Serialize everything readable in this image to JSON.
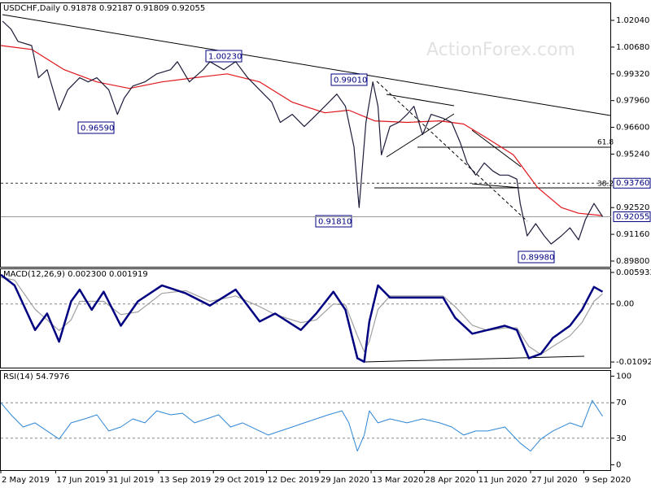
{
  "watermark": "ActionForex.com",
  "chart_data": [
    {
      "type": "line",
      "title": "USDCHF,Daily  0.91878 0.92187 0.91809 0.92055",
      "xlim": [
        0,
        356
      ],
      "ylim": [
        0.8951,
        1.0291
      ],
      "yticks": [
        {
          "value": 1.0204,
          "label": "1.02040"
        },
        {
          "value": 1.0068,
          "label": "1.00680"
        },
        {
          "value": 0.9932,
          "label": "0.99320"
        },
        {
          "value": 0.9796,
          "label": "0.97960"
        },
        {
          "value": 0.966,
          "label": "0.96600"
        },
        {
          "value": 0.9524,
          "label": "0.95240"
        },
        {
          "value": 0.9252,
          "label": "0.92520"
        },
        {
          "value": 0.9116,
          "label": "0.91160"
        },
        {
          "value": 0.898,
          "label": "0.89800"
        }
      ],
      "markers": [
        {
          "value": 0.9376,
          "label": "0.93760"
        },
        {
          "value": 0.92055,
          "label": "0.92055"
        }
      ],
      "annotations": [
        "1.00230",
        "0.99010",
        "0.96590",
        "0.91810",
        "0.89980",
        "61.8",
        "38.2"
      ],
      "series": [
        {
          "color": "#1c1c3a",
          "x": [
            1,
            6,
            10,
            18,
            22,
            27,
            34,
            39,
            46,
            51,
            56,
            63,
            68,
            72,
            77,
            84,
            91,
            99,
            103,
            110,
            118,
            122,
            130,
            137,
            144,
            151,
            158,
            163,
            170,
            177,
            182,
            189,
            196,
            201,
            206,
            209,
            213,
            217,
            220,
            222,
            227,
            232,
            237,
            241,
            246,
            251,
            258,
            263,
            268,
            272,
            277,
            282,
            287,
            291,
            296,
            301,
            303,
            307,
            312,
            317,
            321,
            327,
            332,
            337,
            341,
            346,
            351
          ],
          "values": [
            1.02,
            1.0159,
            1.0097,
            1.0076,
            0.9912,
            0.9953,
            0.9747,
            0.985,
            0.9912,
            0.9891,
            0.9912,
            0.985,
            0.9726,
            0.9809,
            0.987,
            0.9891,
            0.9932,
            0.9953,
            0.9994,
            0.9891,
            0.9953,
            0.9994,
            0.9953,
            0.9994,
            0.9912,
            0.985,
            0.9788,
            0.9685,
            0.9726,
            0.9664,
            0.9706,
            0.9767,
            0.9829,
            0.9767,
            0.9561,
            0.9252,
            0.9685,
            0.9891,
            0.9767,
            0.952,
            0.9664,
            0.9685,
            0.9726,
            0.9767,
            0.9623,
            0.9726,
            0.9706,
            0.9685,
            0.9582,
            0.9479,
            0.9417,
            0.9479,
            0.9438,
            0.9417,
            0.9417,
            0.9397,
            0.9273,
            0.9108,
            0.917,
            0.9108,
            0.9067,
            0.9108,
            0.9149,
            0.9088,
            0.9191,
            0.9273,
            0.9206
          ]
        },
        {
          "color": "#e0151b",
          "x": [
            0,
            18,
            37,
            56,
            75,
            94,
            113,
            132,
            151,
            170,
            189,
            203,
            218,
            237,
            256,
            270,
            284,
            299,
            313,
            327,
            337,
            351
          ],
          "values": [
            1.0076,
            1.0056,
            0.9953,
            0.9891,
            0.9858,
            0.9891,
            0.9912,
            0.9932,
            0.9891,
            0.9788,
            0.9734,
            0.9747,
            0.9693,
            0.9685,
            0.9693,
            0.9677,
            0.9603,
            0.952,
            0.9355,
            0.9252,
            0.9223,
            0.9211
          ]
        }
      ]
    },
    {
      "type": "line",
      "title": "MACD(12,26,9) 0.002300 0.001919",
      "xlim": [
        0,
        356
      ],
      "ylim": [
        -0.01198,
        0.00654
      ],
      "yticks": [
        {
          "value": 0.005933,
          "label": "0.005933"
        },
        {
          "value": 0,
          "label": "0.00"
        },
        {
          "value": -0.010921,
          "label": "-0.010921"
        }
      ],
      "series": [
        {
          "color": "#000080",
          "x": [
            0,
            8,
            20,
            27,
            34,
            41,
            46,
            53,
            60,
            70,
            80,
            94,
            108,
            122,
            137,
            151,
            160,
            175,
            184,
            194,
            201,
            208,
            212,
            215,
            220,
            227,
            237,
            246,
            258,
            265,
            275,
            284,
            294,
            301,
            308,
            315,
            322,
            332,
            339,
            346,
            351
          ],
          "values": [
            0.0055,
            0.0035,
            -0.0049,
            -0.0018,
            -0.0071,
            0.0005,
            0.0027,
            -0.0011,
            0.0023,
            -0.0041,
            0.0005,
            0.0035,
            0.002,
            -0.0003,
            0.0027,
            -0.0033,
            -0.0018,
            -0.0049,
            -0.0018,
            0.0023,
            -0.0011,
            -0.0102,
            -0.0109,
            -0.0033,
            0.0035,
            0.0012,
            0.0012,
            0.0012,
            0.0012,
            -0.0026,
            -0.0056,
            -0.0049,
            -0.0041,
            -0.0049,
            -0.0102,
            -0.0094,
            -0.0064,
            -0.0041,
            -0.0011,
            0.0032,
            0.0023
          ]
        },
        {
          "color": "#a0a0a0",
          "x": [
            0,
            8,
            20,
            27,
            34,
            41,
            46,
            53,
            60,
            70,
            80,
            94,
            108,
            122,
            137,
            151,
            160,
            175,
            184,
            194,
            201,
            208,
            212,
            215,
            220,
            227,
            237,
            246,
            258,
            265,
            275,
            284,
            294,
            301,
            308,
            315,
            322,
            332,
            339,
            346,
            351
          ],
          "values": [
            0.005,
            0.0045,
            -0.001,
            -0.003,
            -0.005,
            -0.003,
            0.0005,
            0.0005,
            0.0005,
            -0.002,
            -0.0015,
            0.002,
            0.0025,
            0.0005,
            0.0015,
            -0.0005,
            -0.002,
            -0.0035,
            -0.003,
            0.0,
            -0.0002,
            -0.006,
            -0.009,
            -0.007,
            -0.001,
            0.0015,
            0.0015,
            0.0015,
            0.0015,
            -0.0005,
            -0.004,
            -0.005,
            -0.0045,
            -0.0045,
            -0.008,
            -0.0095,
            -0.008,
            -0.006,
            -0.0035,
            0.0005,
            0.0019
          ]
        }
      ]
    },
    {
      "type": "line",
      "title": "RSI(14) 54.7976",
      "xlim": [
        0,
        356
      ],
      "ylim": [
        -6,
        106
      ],
      "yticks": [
        100,
        70,
        30,
        0
      ],
      "xticks": [
        {
          "value": 0,
          "label": "2 May 2019"
        },
        {
          "value": 32,
          "label": "17 Jun 2019"
        },
        {
          "value": 62,
          "label": "31 Jul 2019"
        },
        {
          "value": 92,
          "label": "13 Sep 2019"
        },
        {
          "value": 124,
          "label": "29 Oct 2019"
        },
        {
          "value": 155,
          "label": "12 Dec 2019"
        },
        {
          "value": 186,
          "label": "29 Jan 2020"
        },
        {
          "value": 216,
          "label": "13 Mar 2020"
        },
        {
          "value": 247,
          "label": "28 Apr 2020"
        },
        {
          "value": 278,
          "label": "11 Jun 2020"
        },
        {
          "value": 309,
          "label": "27 Jul 2020"
        },
        {
          "value": 340,
          "label": "9 Sep 2020"
        }
      ],
      "series": [
        {
          "color": "#2f86d6",
          "x": [
            0,
            6,
            13,
            20,
            27,
            34,
            41,
            49,
            56,
            63,
            70,
            77,
            84,
            91,
            99,
            106,
            113,
            120,
            127,
            134,
            141,
            149,
            156,
            163,
            170,
            177,
            184,
            191,
            199,
            203,
            208,
            212,
            215,
            220,
            227,
            237,
            246,
            256,
            263,
            270,
            277,
            284,
            294,
            303,
            309,
            315,
            322,
            332,
            339,
            345,
            351
          ],
          "values": [
            70,
            56.4,
            42.7,
            47.3,
            38.2,
            29.1,
            47.3,
            51.8,
            56.4,
            38.2,
            42.7,
            51.8,
            47.3,
            60.9,
            56.4,
            58.2,
            47.3,
            51.8,
            56.4,
            42.7,
            47.3,
            40.0,
            33.6,
            38.2,
            42.7,
            47.3,
            51.8,
            56.4,
            60.9,
            47.3,
            15.5,
            33.6,
            60.9,
            47.3,
            51.8,
            47.3,
            51.8,
            47.3,
            42.7,
            33.6,
            38.2,
            38.2,
            42.7,
            24.5,
            15.5,
            29.1,
            38.2,
            47.3,
            42.7,
            72.7,
            54.8
          ]
        }
      ]
    }
  ]
}
